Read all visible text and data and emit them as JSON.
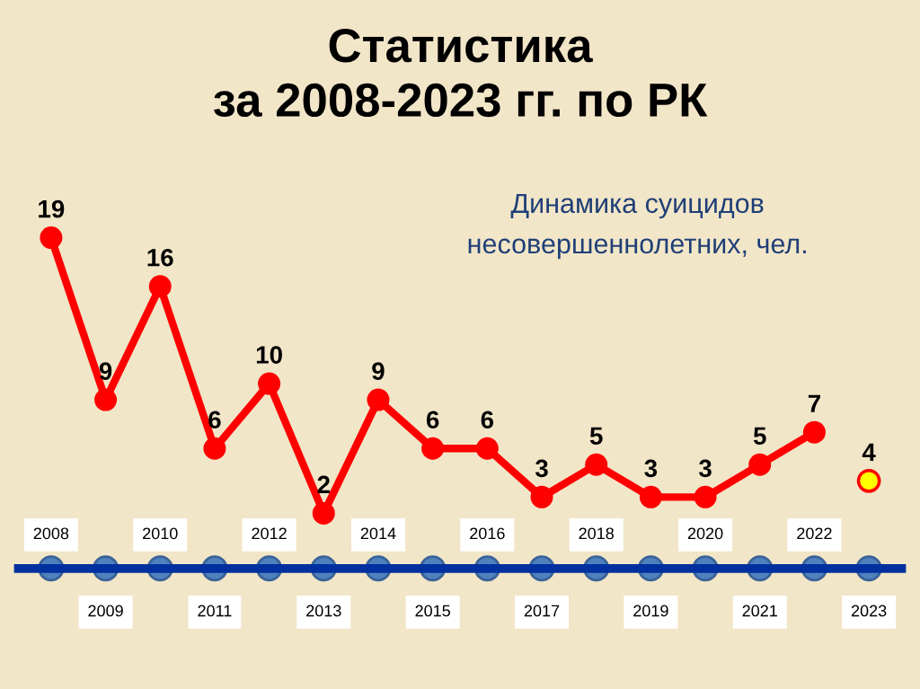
{
  "chart_data": {
    "type": "line",
    "title": "Статистика\nза 2008-2023 гг. по РК",
    "subtitle": "Динамика суицидов\nнесовершеннолетних, чел.",
    "categories": [
      "2008",
      "2009",
      "2010",
      "2011",
      "2012",
      "2013",
      "2014",
      "2015",
      "2016",
      "2017",
      "2018",
      "2019",
      "2020",
      "2021",
      "2022",
      "2023"
    ],
    "series": [
      {
        "color": "#ff0000",
        "values": [
          19,
          9,
          16,
          6,
          10,
          2,
          9,
          6,
          6,
          3,
          5,
          3,
          3,
          5,
          7,
          null
        ]
      },
      {
        "type": "scatter",
        "color": "#ffff00",
        "values": [
          null,
          null,
          null,
          null,
          null,
          null,
          null,
          null,
          null,
          null,
          null,
          null,
          null,
          null,
          null,
          4
        ]
      }
    ],
    "data_labels": true,
    "marker": "circle",
    "line_style": "solid",
    "tick_labels": "x"
  }
}
